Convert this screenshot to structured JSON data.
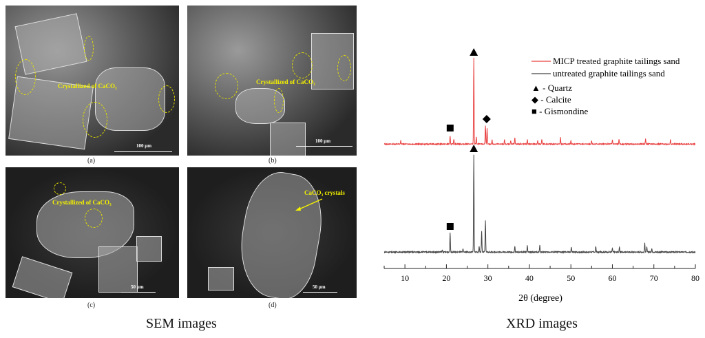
{
  "sem": {
    "caption": "SEM images",
    "panels": [
      {
        "label": "(a)",
        "annotation": "Crystallized of CaCO₃",
        "scale": "100 μm"
      },
      {
        "label": "(b)",
        "annotation": "Crystallized of CaCO₃",
        "scale": "100 μm"
      },
      {
        "label": "(c)",
        "annotation": "Crystallized of CaCO₃",
        "scale": "50 μm"
      },
      {
        "label": "(d)",
        "annotation": "CaCO₃ crystals",
        "scale": "50 μm"
      }
    ]
  },
  "xrd": {
    "caption": "XRD images"
  },
  "chart_data": {
    "type": "line",
    "xlabel": "2θ (degree)",
    "ylabel": "",
    "xlim": [
      5,
      80
    ],
    "xticks": [
      10,
      20,
      30,
      40,
      50,
      60,
      70,
      80
    ],
    "grid": false,
    "legend_position": "top-right",
    "colors": {
      "treated": "#e8403f",
      "untreated": "#444444"
    },
    "series": [
      {
        "name": "MICP treated graphite tailings sand",
        "offset": "upper",
        "peaks": [
          [
            9,
            4
          ],
          [
            20.9,
            9
          ],
          [
            21.8,
            6
          ],
          [
            26.6,
            100
          ],
          [
            27.2,
            8
          ],
          [
            29.4,
            22
          ],
          [
            29.8,
            18
          ],
          [
            31,
            5
          ],
          [
            34,
            5
          ],
          [
            35.5,
            4
          ],
          [
            36.5,
            7
          ],
          [
            39.5,
            5
          ],
          [
            42,
            4
          ],
          [
            43,
            6
          ],
          [
            47.5,
            8
          ],
          [
            50,
            4
          ],
          [
            55,
            4
          ],
          [
            60,
            5
          ],
          [
            61.6,
            5
          ],
          [
            68,
            6
          ],
          [
            74,
            5
          ]
        ]
      },
      {
        "name": "untreated graphite tailings sand",
        "offset": "lower",
        "peaks": [
          [
            19,
            2
          ],
          [
            20.9,
            20
          ],
          [
            24,
            3
          ],
          [
            26.6,
            100
          ],
          [
            27.9,
            6
          ],
          [
            28.5,
            21
          ],
          [
            29.4,
            32
          ],
          [
            36.5,
            6
          ],
          [
            39.5,
            7
          ],
          [
            42.5,
            7
          ],
          [
            50.1,
            5
          ],
          [
            56,
            6
          ],
          [
            60,
            4
          ],
          [
            61.7,
            5
          ],
          [
            67.8,
            9
          ],
          [
            68.3,
            5
          ],
          [
            69.5,
            4
          ]
        ]
      }
    ],
    "phase_markers": [
      {
        "phase": "Quartz",
        "symbol": "triangle",
        "label": "▲ - Quartz",
        "positions": [
          26.6
        ]
      },
      {
        "phase": "Calcite",
        "symbol": "diamond",
        "label": "◆ - Calcite",
        "positions": [
          29.7
        ]
      },
      {
        "phase": "Gismondine",
        "symbol": "square",
        "label": "■ - Gismondine",
        "positions": [
          20.9
        ]
      }
    ]
  }
}
